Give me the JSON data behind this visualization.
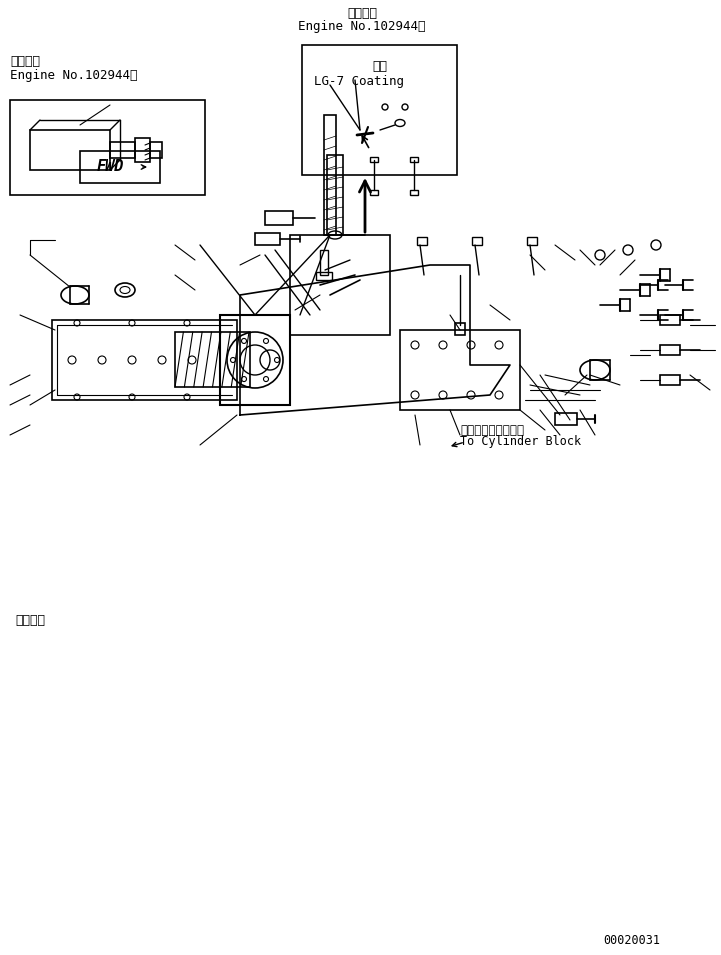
{
  "bg_color": "#ffffff",
  "line_color": "#000000",
  "fig_width": 7.21,
  "fig_height": 9.55,
  "top_label_1": "適用号機",
  "top_label_2": "Engine No.102944～",
  "coating_label_1": "塗布",
  "coating_label_2": "LG-7 Coating",
  "bottom_left_label_1": "適用号機",
  "bottom_left_label_2": "Engine No.102944～",
  "cylinder_label_1": "シリンダブロックへ",
  "cylinder_label_2": "To Cylinder Block",
  "page_num": "00020031",
  "fwd_label": "FWD"
}
